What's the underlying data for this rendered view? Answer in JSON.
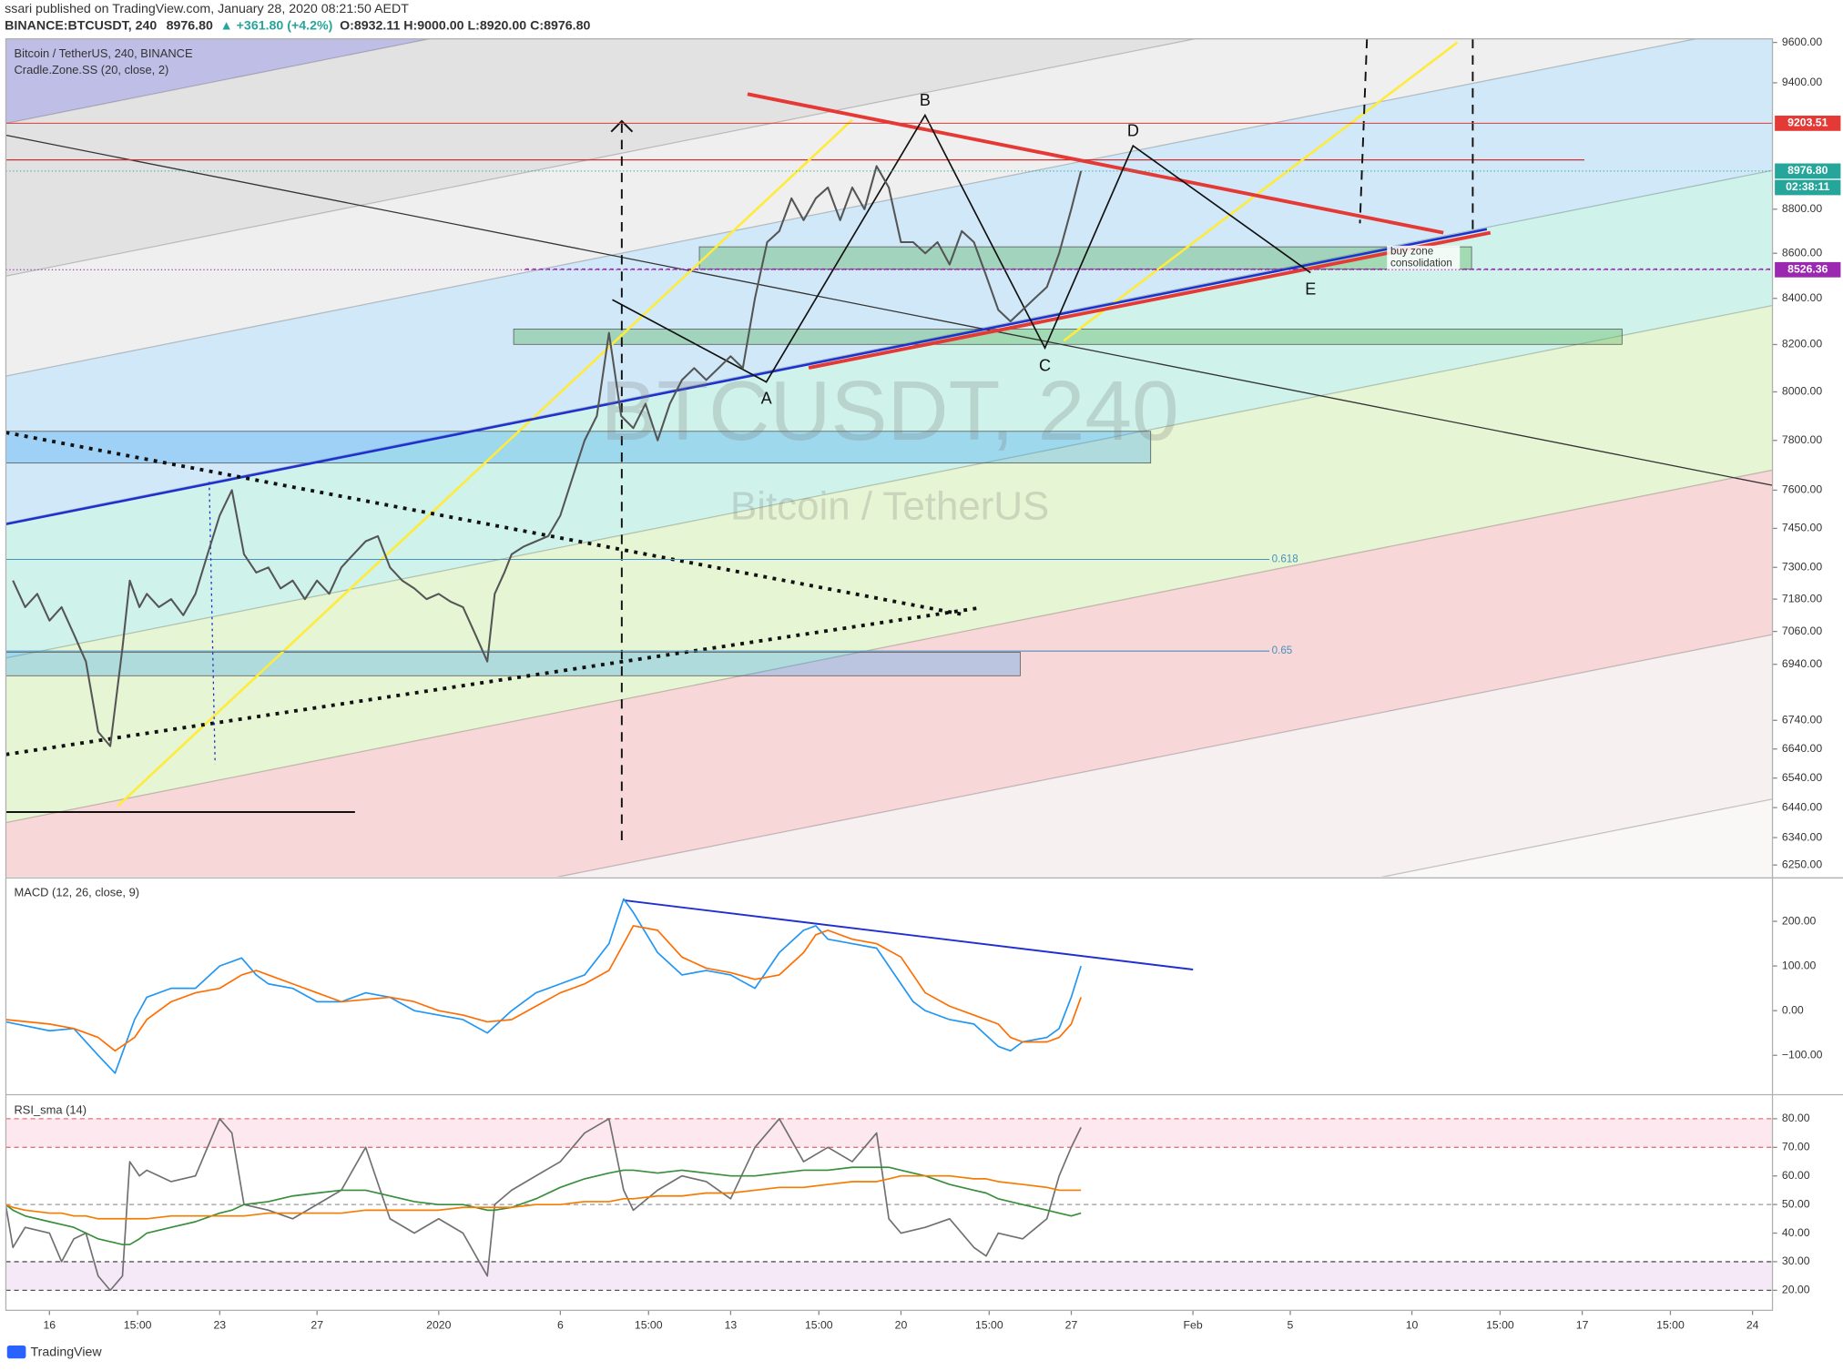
{
  "header": {
    "publisher": "ssari published on TradingView.com, January 28, 2020 08:21:50 AEDT",
    "symbol": "BINANCE:BTCUSDT, 240",
    "last": "8976.80",
    "change": "▲ +361.80 (+4.2%)",
    "ohlc": "O:8932.11 H:9000.00 L:8920.00 C:8976.80"
  },
  "footer": "TradingView",
  "chart_data": [
    {
      "type": "line",
      "title": "Bitcoin / TetherUS, 240, BINANCE",
      "subtitle": "Cradle.Zone.SS (20, close, 2)",
      "watermark": "BTCUSDT, 240",
      "watermark_subtitle": "Bitcoin / TetherUS",
      "log_scale": true,
      "color": "#555555",
      "x": [
        -1.5,
        -1,
        -0.5,
        0,
        0.5,
        1,
        1.5,
        2,
        2.5,
        3,
        3.3,
        3.7,
        4,
        4.5,
        5,
        5.5,
        6,
        6.5,
        7,
        7.5,
        8,
        8.5,
        9,
        9.5,
        10,
        10.5,
        11,
        11.5,
        12,
        12.5,
        13,
        13.5,
        14,
        14.5,
        15,
        15.5,
        16,
        16.5,
        17,
        17.5,
        18,
        18.3,
        18.7,
        19,
        19.5,
        20,
        20.5,
        21,
        21.5,
        22,
        22.5,
        23,
        23.5,
        24,
        24.5,
        25,
        25.5,
        26,
        26.5,
        27,
        27.5,
        28,
        28.5,
        29,
        29.5,
        30,
        30.5,
        31,
        31.5,
        32,
        32.5,
        33,
        33.5,
        34,
        34.5,
        35,
        35.5,
        36,
        36.5,
        37,
        37.5,
        38,
        38.5,
        39,
        39.5,
        40,
        40.5,
        41,
        41.5,
        42,
        42.4
      ],
      "values": [
        7250,
        7150,
        7200,
        7100,
        7150,
        7050,
        6950,
        6700,
        6650,
        7000,
        7250,
        7150,
        7200,
        7150,
        7180,
        7120,
        7200,
        7350,
        7500,
        7600,
        7350,
        7280,
        7300,
        7220,
        7250,
        7180,
        7250,
        7200,
        7300,
        7350,
        7400,
        7420,
        7300,
        7250,
        7220,
        7180,
        7200,
        7170,
        7150,
        7050,
        6950,
        7200,
        7280,
        7350,
        7380,
        7400,
        7420,
        7500,
        7650,
        7800,
        7900,
        8250,
        7900,
        7850,
        7950,
        7800,
        7950,
        8050,
        8100,
        8050,
        8100,
        8150,
        8100,
        8400,
        8650,
        8700,
        8850,
        8750,
        8850,
        8900,
        8750,
        8900,
        8800,
        9000,
        8900,
        8650,
        8650,
        8600,
        8650,
        8550,
        8700,
        8650,
        8500,
        8350,
        8300,
        8350,
        8400,
        8450,
        8600,
        8800,
        8976.8
      ],
      "xlim": [
        -1.79,
        70.82
      ],
      "ylim": [
        6212,
        9618
      ],
      "yticks": [
        {
          "value": 9600,
          "label": "9600.00"
        },
        {
          "value": 9400,
          "label": "9400.00"
        },
        {
          "value": 8800,
          "label": "8800.00"
        },
        {
          "value": 8600,
          "label": "8600.00"
        },
        {
          "value": 8400,
          "label": "8400.00"
        },
        {
          "value": 8200,
          "label": "8200.00"
        },
        {
          "value": 8000,
          "label": "8000.00"
        },
        {
          "value": 7800,
          "label": "7800.00"
        },
        {
          "value": 7600,
          "label": "7600.00"
        },
        {
          "value": 7450,
          "label": "7450.00"
        },
        {
          "value": 7300,
          "label": "7300.00"
        },
        {
          "value": 7180,
          "label": "7180.00"
        },
        {
          "value": 7060,
          "label": "7060.00"
        },
        {
          "value": 6940,
          "label": "6940.00"
        },
        {
          "value": 6740,
          "label": "6740.00"
        },
        {
          "value": 6640,
          "label": "6640.00"
        },
        {
          "value": 6540,
          "label": "6540.00"
        },
        {
          "value": 6440,
          "label": "6440.00"
        },
        {
          "value": 6340,
          "label": "6340.00"
        },
        {
          "value": 6250,
          "label": "6250.00"
        }
      ],
      "price_tags": [
        9203.51,
        {
          "value": 8976.8,
          "label": "8976.80"
        },
        8526.36
      ],
      "price_tag_colors": [
        "#e53935",
        "#26a69a",
        "#9c27b0"
      ],
      "countdown": "02:38:11",
      "pattern_labels": [
        "A",
        "B",
        "C",
        "D",
        "E"
      ],
      "zone_label": [
        "buy zone",
        "consolidation"
      ],
      "fib_labels": [
        "0.618",
        "0.65"
      ]
    },
    {
      "type": "line",
      "title": "MACD (12, 26, close, 9)",
      "x": [
        -1.8,
        0,
        1,
        2,
        2.7,
        3.5,
        4,
        5,
        6,
        7,
        7.9,
        8.5,
        9,
        10,
        11,
        12,
        13,
        14,
        15,
        16,
        17,
        18,
        19,
        20,
        21,
        22,
        23,
        23.6,
        24,
        25,
        26,
        27,
        28,
        29,
        30,
        31,
        31.5,
        32,
        33,
        34,
        35,
        35.5,
        36,
        37,
        38,
        39,
        39.5,
        40,
        41,
        41.5,
        42,
        42.4
      ],
      "series": [
        {
          "color": "#2196f3",
          "values": [
            -25,
            -45,
            -40,
            -100,
            -140,
            -20,
            30,
            50,
            50,
            100,
            118,
            80,
            60,
            50,
            20,
            20,
            40,
            30,
            0,
            -10,
            -20,
            -50,
            0,
            40,
            60,
            80,
            150,
            250,
            220,
            130,
            80,
            90,
            80,
            50,
            130,
            180,
            190,
            160,
            150,
            140,
            60,
            20,
            0,
            -20,
            -30,
            -80,
            -90,
            -70,
            -60,
            -40,
            30,
            100
          ]
        },
        {
          "color": "#ff6d00",
          "values": [
            -20,
            -30,
            -40,
            -60,
            -90,
            -60,
            -20,
            20,
            40,
            50,
            80,
            90,
            80,
            60,
            40,
            20,
            25,
            30,
            20,
            0,
            -10,
            -25,
            -20,
            10,
            40,
            60,
            90,
            150,
            190,
            180,
            120,
            95,
            85,
            70,
            80,
            130,
            170,
            180,
            160,
            150,
            120,
            80,
            40,
            10,
            -10,
            -30,
            -60,
            -70,
            -70,
            -60,
            -30,
            30
          ]
        }
      ],
      "xlim": [
        -1.79,
        70.82
      ],
      "ylim": [
        -184.2,
        294.7
      ],
      "yticks": [
        {
          "value": 200,
          "label": "200.00"
        },
        {
          "value": 100,
          "label": "100.00"
        },
        {
          "value": 0,
          "label": "0.00"
        },
        {
          "value": -100,
          "label": "−100.00"
        }
      ]
    },
    {
      "type": "line",
      "title": "RSI_sma (14)",
      "x": [
        -1.8,
        -1.5,
        -1,
        0,
        0.5,
        1,
        1.5,
        2,
        2.5,
        3,
        3.3,
        3.7,
        4,
        5,
        6,
        7,
        7.5,
        8,
        9,
        10,
        11,
        12,
        13,
        14,
        15,
        16,
        17,
        18,
        18.3,
        19,
        20,
        21,
        22,
        23,
        23.6,
        24,
        25,
        26,
        27,
        28,
        29,
        30,
        31,
        32,
        33,
        34,
        34.5,
        35,
        36,
        37,
        38,
        38.5,
        39,
        40,
        41,
        41.5,
        42,
        42.4
      ],
      "series": [
        {
          "color": "#707070",
          "values": [
            50,
            35,
            42,
            40,
            30,
            38,
            40,
            25,
            20,
            25,
            65,
            60,
            62,
            58,
            60,
            80,
            75,
            50,
            48,
            45,
            50,
            55,
            70,
            45,
            40,
            45,
            40,
            25,
            50,
            55,
            60,
            65,
            75,
            80,
            55,
            48,
            55,
            60,
            58,
            52,
            70,
            80,
            65,
            70,
            65,
            75,
            45,
            40,
            42,
            45,
            35,
            32,
            40,
            38,
            45,
            60,
            70,
            77
          ]
        },
        {
          "color": "#388e3c",
          "values": [
            50,
            48,
            46,
            44,
            43,
            42,
            40,
            38,
            37,
            36,
            36,
            38,
            40,
            42,
            44,
            47,
            48,
            50,
            51,
            53,
            54,
            55,
            55,
            53,
            51,
            50,
            50,
            48,
            48,
            49,
            52,
            56,
            59,
            61,
            62,
            62,
            61,
            62,
            61,
            60,
            60,
            61,
            62,
            62,
            63,
            63,
            63,
            62,
            60,
            57,
            55,
            54,
            52,
            50,
            48,
            47,
            46,
            47
          ]
        },
        {
          "color": "#f57c00",
          "values": [
            50,
            49,
            48,
            47,
            47,
            46,
            46,
            45,
            45,
            45,
            45,
            45,
            45,
            46,
            46,
            46,
            46,
            46,
            47,
            47,
            47,
            47,
            48,
            48,
            48,
            48,
            49,
            49,
            49,
            49,
            50,
            50,
            51,
            51,
            52,
            52,
            53,
            53,
            54,
            54,
            55,
            56,
            56,
            57,
            58,
            58,
            59,
            60,
            60,
            60,
            59,
            59,
            58,
            57,
            56,
            55,
            55,
            55
          ]
        }
      ],
      "bands": [
        [
          70,
          80
        ],
        [
          20,
          30
        ]
      ],
      "band_colors": [
        "rgba(233,30,99,0.10)",
        "rgba(156,39,176,0.10)"
      ],
      "midline": 50,
      "xlim": [
        -1.79,
        70.82
      ],
      "ylim": [
        13.0,
        87.8
      ],
      "yticks": [
        {
          "value": 80,
          "label": "80.00"
        },
        {
          "value": 70,
          "label": "70.00"
        },
        {
          "value": 60,
          "label": "60.00"
        },
        {
          "value": 50,
          "label": "50.00"
        },
        {
          "value": 40,
          "label": "40.00"
        },
        {
          "value": 30,
          "label": "30.00"
        },
        {
          "value": 20,
          "label": "20.00"
        }
      ],
      "xticks": [
        {
          "value": 0,
          "label": "16"
        },
        {
          "value": 3.625,
          "label": "15:00"
        },
        {
          "value": 7,
          "label": "23"
        },
        {
          "value": 11,
          "label": "27"
        },
        {
          "value": 16,
          "label": "2020"
        },
        {
          "value": 21,
          "label": "6"
        },
        {
          "value": 24.625,
          "label": "15:00"
        },
        {
          "value": 28,
          "label": "13"
        },
        {
          "value": 31.625,
          "label": "15:00"
        },
        {
          "value": 35,
          "label": "20"
        },
        {
          "value": 38.625,
          "label": "15:00"
        },
        {
          "value": 42,
          "label": "27"
        },
        {
          "value": 47,
          "label": "Feb"
        },
        {
          "value": 51,
          "label": "5"
        },
        {
          "value": 56,
          "label": "10"
        },
        {
          "value": 59.625,
          "label": "15:00"
        },
        {
          "value": 63,
          "label": "17"
        },
        {
          "value": 66.625,
          "label": "15:00"
        },
        {
          "value": 70,
          "label": "24"
        }
      ]
    }
  ]
}
